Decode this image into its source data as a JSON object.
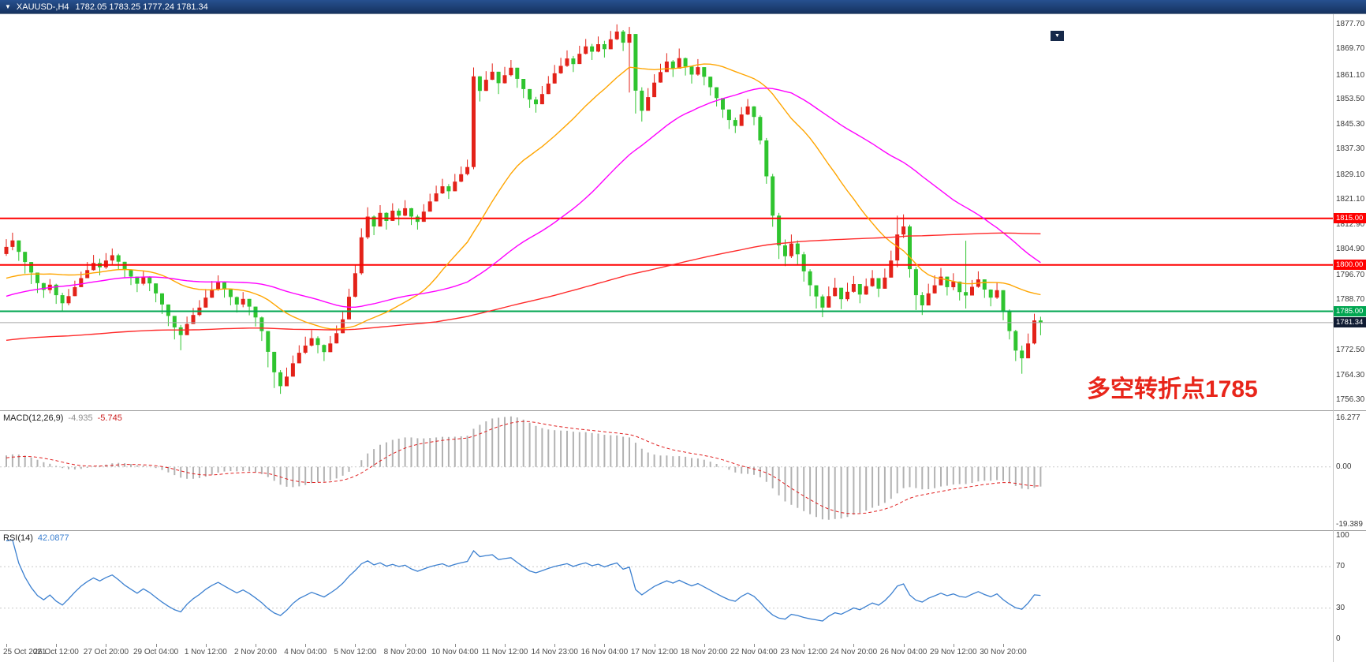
{
  "header": {
    "symbol": "XAUUSD-,H4",
    "ohlc": "1782.05 1783.25 1777.24 1781.34"
  },
  "main_chart": {
    "y_ticks": [
      "1877.70",
      "1869.70",
      "1861.10",
      "1853.50",
      "1845.30",
      "1837.30",
      "1829.10",
      "1821.10",
      "1812.90",
      "1804.90",
      "1796.70",
      "1788.70",
      "1780.70",
      "1772.50",
      "1764.30",
      "1756.30"
    ],
    "price_lines": [
      {
        "value": 1815.0,
        "label": "1815.00",
        "color": "#ff0000"
      },
      {
        "value": 1800.0,
        "label": "1800.00",
        "color": "#ff0000"
      },
      {
        "value": 1785.0,
        "label": "1785.00",
        "color": "#00a651"
      }
    ],
    "current_price": {
      "value": 1781.34,
      "label": "1781.34",
      "line_color": "#a6a6a6",
      "badge_bg": "#101c33"
    },
    "annotation": {
      "text": "多空转折点1785",
      "color": "#e8251a"
    }
  },
  "macd": {
    "name": "MACD(12,26,9)",
    "value_main": "-4.935",
    "value_signal": "-5.745",
    "params": {
      "fast": 12,
      "slow": 26,
      "signal": 9
    },
    "axis": [
      "16.277",
      "0.00",
      "-19.389"
    ]
  },
  "rsi": {
    "name": "RSI(14)",
    "value": "42.0877",
    "period": 14,
    "axis": [
      "100",
      "70",
      "30",
      "0"
    ],
    "levels": [
      70,
      30
    ]
  },
  "time_axis": {
    "labels": [
      "25 Oct 2021",
      "26 Oct 12:00",
      "27 Oct 20:00",
      "29 Oct 04:00",
      "1 Nov 12:00",
      "2 Nov 20:00",
      "4 Nov 04:00",
      "5 Nov 12:00",
      "8 Nov 20:00",
      "10 Nov 04:00",
      "11 Nov 12:00",
      "14 Nov 23:00",
      "16 Nov 04:00",
      "17 Nov 12:00",
      "18 Nov 20:00",
      "22 Nov 04:00",
      "23 Nov 12:00",
      "24 Nov 20:00",
      "26 Nov 04:00",
      "29 Nov 12:00",
      "30 Nov 20:00"
    ]
  },
  "chart_data": {
    "type": "candlestick",
    "instrument": "XAUUSD-",
    "period": "H4",
    "ylim": [
      1753,
      1881
    ],
    "colors": {
      "up": "#e32219",
      "down": "#2fc42f",
      "macd_hist": "#b2b2b2",
      "macd_signal": "#e02020",
      "rsi": "#3c80d0"
    },
    "ma_lines": [
      {
        "name": "MA-fast",
        "period": 26,
        "color": "#ffa500"
      },
      {
        "name": "MA-mid",
        "period": 52,
        "color": "#ff00ff"
      },
      {
        "name": "MA-slow",
        "period": 200,
        "color": "#ff2a2a"
      }
    ],
    "open_first": 1803.5,
    "closes": [
      1805.8,
      1807.9,
      1804.2,
      1800.9,
      1797.5,
      1794.1,
      1791.9,
      1793.6,
      1790.2,
      1787.6,
      1789.9,
      1792.8,
      1795.7,
      1798.3,
      1800.6,
      1799.2,
      1801.4,
      1803.1,
      1801.0,
      1798.4,
      1796.2,
      1793.9,
      1796.1,
      1794.0,
      1790.8,
      1787.2,
      1783.5,
      1779.8,
      1777.3,
      1780.9,
      1783.8,
      1786.2,
      1789.4,
      1792.1,
      1794.3,
      1792.0,
      1789.6,
      1787.2,
      1789.0,
      1786.5,
      1783.0,
      1778.6,
      1771.9,
      1765.3,
      1760.8,
      1763.9,
      1768.2,
      1771.6,
      1773.9,
      1776.3,
      1774.1,
      1771.8,
      1774.6,
      1777.9,
      1782.4,
      1789.7,
      1797.3,
      1808.9,
      1815.6,
      1812.4,
      1816.8,
      1814.2,
      1817.5,
      1815.9,
      1818.3,
      1815.6,
      1813.9,
      1817.2,
      1820.5,
      1823.1,
      1825.4,
      1823.8,
      1826.9,
      1829.3,
      1831.6,
      1860.9,
      1856.2,
      1859.8,
      1862.4,
      1858.7,
      1861.3,
      1863.7,
      1860.1,
      1856.8,
      1853.4,
      1851.9,
      1855.2,
      1858.6,
      1861.9,
      1864.3,
      1866.7,
      1864.9,
      1868.2,
      1870.6,
      1868.9,
      1871.3,
      1869.7,
      1872.9,
      1875.4,
      1871.8,
      1874.6,
      1856.3,
      1849.8,
      1854.2,
      1858.9,
      1862.3,
      1865.7,
      1863.4,
      1866.8,
      1864.1,
      1861.5,
      1863.9,
      1860.8,
      1857.4,
      1853.9,
      1850.2,
      1846.8,
      1844.9,
      1848.6,
      1851.2,
      1847.8,
      1840.2,
      1828.6,
      1815.9,
      1806.3,
      1802.8,
      1806.9,
      1803.4,
      1797.9,
      1793.4,
      1789.8,
      1786.2,
      1789.9,
      1792.6,
      1788.9,
      1791.3,
      1793.8,
      1790.4,
      1793.1,
      1795.7,
      1792.3,
      1795.9,
      1801.4,
      1809.8,
      1812.4,
      1798.6,
      1790.2,
      1786.9,
      1790.8,
      1793.4,
      1796.2,
      1792.8,
      1794.6,
      1791.2,
      1790.1,
      1792.9,
      1795.3,
      1792.0,
      1789.4,
      1791.8,
      1784.9,
      1778.6,
      1772.3,
      1769.8,
      1774.6,
      1782.05,
      1781.34
    ],
    "highs": [
      1808.3,
      1810.4,
      1807.5,
      1803.2,
      1800.1,
      1796.6,
      1794.2,
      1795.4,
      1793.9,
      1791.0,
      1792.2,
      1794.9,
      1797.8,
      1800.9,
      1803.2,
      1802.0,
      1803.8,
      1805.3,
      1803.6,
      1800.9,
      1798.6,
      1796.2,
      1798.0,
      1796.3,
      1793.6,
      1790.0,
      1786.4,
      1783.0,
      1780.6,
      1783.3,
      1786.1,
      1788.6,
      1792.2,
      1794.8,
      1796.6,
      1794.5,
      1792.1,
      1789.8,
      1791.2,
      1789.0,
      1786.2,
      1783.3,
      1778.1,
      1771.5,
      1766.0,
      1766.8,
      1770.7,
      1774.0,
      1776.8,
      1778.9,
      1776.9,
      1774.3,
      1777.0,
      1780.4,
      1785.1,
      1792.3,
      1799.9,
      1811.8,
      1818.6,
      1816.0,
      1819.3,
      1817.0,
      1819.9,
      1818.2,
      1820.9,
      1818.4,
      1816.2,
      1819.6,
      1823.0,
      1825.6,
      1827.8,
      1826.1,
      1829.4,
      1831.8,
      1834.0,
      1863.8,
      1861.0,
      1862.6,
      1865.1,
      1861.9,
      1864.0,
      1866.2,
      1863.5,
      1859.9,
      1856.6,
      1854.3,
      1857.8,
      1861.0,
      1864.6,
      1866.9,
      1869.3,
      1867.5,
      1870.8,
      1873.0,
      1871.4,
      1873.8,
      1872.4,
      1875.6,
      1877.7,
      1875.9,
      1876.9,
      1872.1,
      1857.4,
      1857.1,
      1861.6,
      1865.0,
      1868.4,
      1866.2,
      1869.9,
      1867.0,
      1864.3,
      1866.5,
      1863.4,
      1860.1,
      1856.8,
      1853.0,
      1849.9,
      1847.6,
      1851.0,
      1853.6,
      1851.3,
      1848.3,
      1841.0,
      1829.4,
      1816.8,
      1808.2,
      1809.8,
      1807.9,
      1804.2,
      1798.6,
      1793.2,
      1790.4,
      1793.0,
      1795.8,
      1792.4,
      1794.2,
      1796.4,
      1793.2,
      1795.6,
      1798.3,
      1795.0,
      1798.8,
      1804.6,
      1815.9,
      1816.3,
      1813.0,
      1799.4,
      1791.2,
      1793.9,
      1796.6,
      1799.0,
      1795.9,
      1797.3,
      1794.0,
      1807.8,
      1795.1,
      1797.9,
      1794.6,
      1792.1,
      1794.3,
      1790.3,
      1785.6,
      1779.0,
      1773.9,
      1777.8,
      1784.2,
      1783.25
    ],
    "lows": [
      1802.9,
      1804.7,
      1801.3,
      1797.2,
      1793.8,
      1790.9,
      1789.3,
      1790.8,
      1787.4,
      1784.8,
      1786.9,
      1789.9,
      1793.1,
      1795.9,
      1798.1,
      1796.6,
      1798.7,
      1800.2,
      1798.3,
      1795.8,
      1793.5,
      1791.2,
      1793.4,
      1791.5,
      1787.9,
      1784.1,
      1780.2,
      1775.9,
      1772.4,
      1777.6,
      1780.9,
      1783.4,
      1786.6,
      1789.3,
      1791.6,
      1789.4,
      1786.9,
      1784.6,
      1786.3,
      1783.7,
      1780.1,
      1775.4,
      1766.9,
      1760.2,
      1758.3,
      1760.9,
      1765.4,
      1768.8,
      1771.2,
      1773.6,
      1771.4,
      1768.9,
      1771.9,
      1775.2,
      1779.8,
      1786.9,
      1789.5,
      1796.8,
      1808.3,
      1809.6,
      1812.9,
      1811.4,
      1814.6,
      1812.8,
      1815.7,
      1812.9,
      1811.4,
      1814.5,
      1817.9,
      1820.6,
      1822.9,
      1821.3,
      1824.2,
      1826.7,
      1828.9,
      1830.9,
      1852.8,
      1856.4,
      1859.7,
      1855.2,
      1858.6,
      1860.9,
      1857.2,
      1853.9,
      1850.7,
      1849.2,
      1852.6,
      1855.9,
      1859.2,
      1861.7,
      1864.0,
      1862.3,
      1865.6,
      1868.0,
      1866.2,
      1868.7,
      1867.0,
      1870.2,
      1872.6,
      1869.1,
      1855.7,
      1848.9,
      1846.3,
      1850.6,
      1856.2,
      1859.6,
      1862.9,
      1860.7,
      1863.9,
      1861.2,
      1858.6,
      1861.1,
      1858.0,
      1854.7,
      1851.2,
      1847.5,
      1843.9,
      1842.6,
      1845.8,
      1848.4,
      1845.1,
      1838.9,
      1826.2,
      1812.3,
      1801.9,
      1799.6,
      1802.2,
      1800.1,
      1794.6,
      1789.9,
      1785.9,
      1783.1,
      1786.4,
      1789.8,
      1785.7,
      1788.3,
      1791.0,
      1787.6,
      1790.3,
      1792.9,
      1789.6,
      1793.0,
      1798.6,
      1799.2,
      1808.7,
      1795.9,
      1785.4,
      1783.8,
      1787.9,
      1790.7,
      1793.5,
      1790.1,
      1791.8,
      1788.5,
      1785.9,
      1790.2,
      1792.6,
      1789.3,
      1786.6,
      1789.0,
      1782.1,
      1775.9,
      1768.9,
      1764.8,
      1769.9,
      1774.3,
      1777.24
    ]
  }
}
